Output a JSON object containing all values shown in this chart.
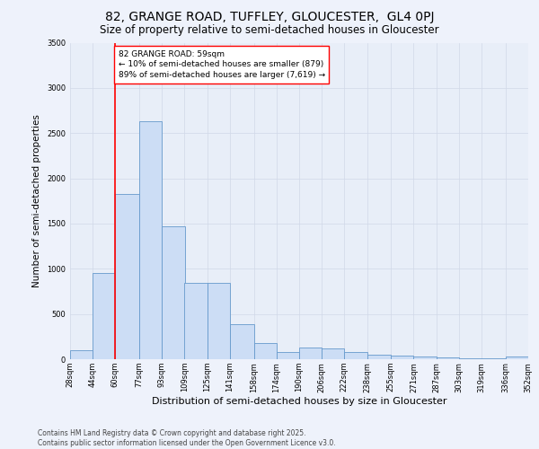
{
  "title1": "82, GRANGE ROAD, TUFFLEY, GLOUCESTER,  GL4 0PJ",
  "title2": "Size of property relative to semi-detached houses in Gloucester",
  "xlabel": "Distribution of semi-detached houses by size in Gloucester",
  "ylabel": "Number of semi-detached properties",
  "footer1": "Contains HM Land Registry data © Crown copyright and database right 2025.",
  "footer2": "Contains public sector information licensed under the Open Government Licence v3.0.",
  "bar_left_edges": [
    28,
    44,
    60,
    77,
    93,
    109,
    125,
    141,
    158,
    174,
    190,
    206,
    222,
    238,
    255,
    271,
    287,
    303,
    319,
    336
  ],
  "bar_widths": [
    16,
    16,
    17,
    16,
    16,
    16,
    16,
    17,
    16,
    16,
    16,
    16,
    16,
    17,
    16,
    16,
    16,
    16,
    17,
    16
  ],
  "bar_heights": [
    100,
    950,
    1830,
    2630,
    1470,
    840,
    840,
    390,
    175,
    80,
    130,
    115,
    75,
    50,
    40,
    32,
    18,
    12,
    8,
    25
  ],
  "bar_facecolor": "#ccddf5",
  "bar_edgecolor": "#6699cc",
  "tick_labels": [
    "28sqm",
    "44sqm",
    "60sqm",
    "77sqm",
    "93sqm",
    "109sqm",
    "125sqm",
    "141sqm",
    "158sqm",
    "174sqm",
    "190sqm",
    "206sqm",
    "222sqm",
    "238sqm",
    "255sqm",
    "271sqm",
    "287sqm",
    "303sqm",
    "319sqm",
    "336sqm",
    "352sqm"
  ],
  "red_line_x": 60,
  "annotation_title": "82 GRANGE ROAD: 59sqm",
  "annotation_line1": "← 10% of semi-detached houses are smaller (879)",
  "annotation_line2": "89% of semi-detached houses are larger (7,619) →",
  "ylim": [
    0,
    3500
  ],
  "yticks": [
    0,
    500,
    1000,
    1500,
    2000,
    2500,
    3000,
    3500
  ],
  "bg_color": "#eef2fb",
  "plot_bg_color": "#e8eef8",
  "grid_color": "#d0d8e8",
  "title1_fontsize": 10,
  "title2_fontsize": 8.5,
  "xlabel_fontsize": 8,
  "ylabel_fontsize": 7.5,
  "tick_fontsize": 6,
  "annot_fontsize": 6.5,
  "footer_fontsize": 5.5
}
